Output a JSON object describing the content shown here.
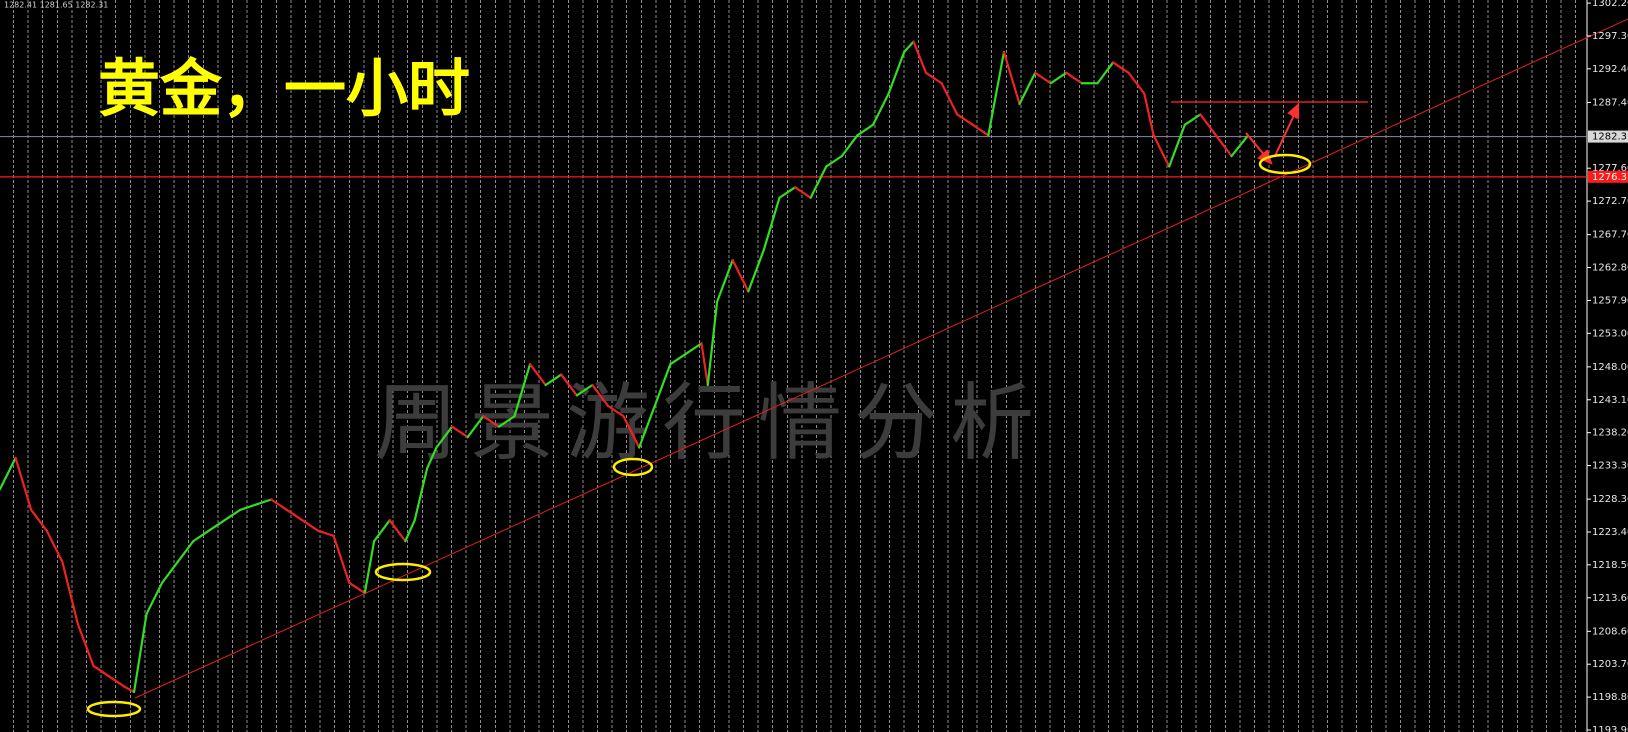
{
  "chart_data": {
    "type": "line",
    "title": "黄金，一小时",
    "watermark": "周景游行情分析",
    "info": "1282.41 1281.65 1282.31",
    "x": [
      0,
      5,
      10,
      15,
      20,
      25,
      30,
      35,
      40,
      43,
      47,
      52,
      57,
      62,
      67,
      72,
      77,
      82,
      87,
      92,
      97,
      102,
      107,
      112,
      117,
      120,
      125,
      130,
      133,
      137,
      140,
      145,
      150,
      155,
      160,
      165,
      170,
      175,
      180,
      185,
      190,
      195,
      200,
      205,
      210,
      215,
      220,
      225,
      227,
      230,
      235,
      240,
      245,
      250,
      255,
      260,
      265,
      270,
      275,
      280,
      285,
      290,
      293,
      297,
      302,
      307,
      312,
      317,
      322,
      327,
      332,
      337,
      342,
      347,
      352,
      357,
      362,
      367,
      370,
      375,
      380,
      385,
      390,
      395,
      400
    ],
    "values": [
      1229.79,
      1234.44,
      1226.69,
      1223.59,
      1218.94,
      1209.64,
      1203.44,
      1201.88,
      1200.33,
      1199.56,
      1211.19,
      1215.84,
      1218.94,
      1222.04,
      1223.59,
      1225.14,
      1226.69,
      1227.47,
      1228.24,
      1226.69,
      1225.14,
      1223.59,
      1222.82,
      1215.84,
      1214.29,
      1222.04,
      1225.14,
      1222.04,
      1225.14,
      1232.89,
      1235.99,
      1239.09,
      1237.54,
      1240.64,
      1239.09,
      1240.64,
      1248.4,
      1245.3,
      1246.85,
      1243.75,
      1245.3,
      1242.19,
      1240.64,
      1235.99,
      1242.19,
      1248.4,
      1249.95,
      1251.5,
      1245.3,
      1257.7,
      1263.9,
      1259.25,
      1265.45,
      1273.2,
      1274.75,
      1273.2,
      1277.85,
      1279.4,
      1282.5,
      1284.06,
      1288.71,
      1294.91,
      1296.46,
      1291.81,
      1290.26,
      1285.61,
      1284.06,
      1282.5,
      1294.91,
      1287.16,
      1291.81,
      1290.26,
      1291.81,
      1290.26,
      1290.26,
      1293.36,
      1291.81,
      1288.71,
      1282.5,
      1277.85,
      1284.06,
      1285.61,
      1282.5,
      1279.4,
      1282.31
    ],
    "up_color": "#33dd22",
    "down_color": "#ee2222",
    "xlim": [
      0,
      509
    ],
    "ylim": [
      1193.6,
      1302.66
    ],
    "yticks": [
      {
        "value": 1302.2,
        "label": "1302.20"
      },
      {
        "value": 1297.3,
        "label": "1297.30"
      },
      {
        "value": 1292.4,
        "label": "1292.40"
      },
      {
        "value": 1287.4,
        "label": "1287.40"
      },
      {
        "value": 1277.6,
        "label": "1277.60"
      },
      {
        "value": 1272.7,
        "label": "1272.70"
      },
      {
        "value": 1267.7,
        "label": "1267.70"
      },
      {
        "value": 1262.8,
        "label": "1262.80"
      },
      {
        "value": 1257.9,
        "label": "1257.90"
      },
      {
        "value": 1253.0,
        "label": "1253.00"
      },
      {
        "value": 1248.0,
        "label": "1248.00"
      },
      {
        "value": 1243.1,
        "label": "1243.10"
      },
      {
        "value": 1238.2,
        "label": "1238.20"
      },
      {
        "value": 1233.3,
        "label": "1233.30"
      },
      {
        "value": 1228.3,
        "label": "1228.30"
      },
      {
        "value": 1223.4,
        "label": "1223.40"
      },
      {
        "value": 1218.5,
        "label": "1218.50"
      },
      {
        "value": 1213.6,
        "label": "1213.60"
      },
      {
        "value": 1208.6,
        "label": "1208.60"
      },
      {
        "value": 1203.7,
        "label": "1203.70"
      },
      {
        "value": 1198.8,
        "label": "1198.80"
      },
      {
        "value": 1193.9,
        "label": "1193.90"
      }
    ],
    "current_price": {
      "value": 1282.31,
      "label": "1282.31"
    },
    "level": {
      "value": 1276.31,
      "label": "1276.31",
      "color": "#ff1a1a"
    }
  }
}
